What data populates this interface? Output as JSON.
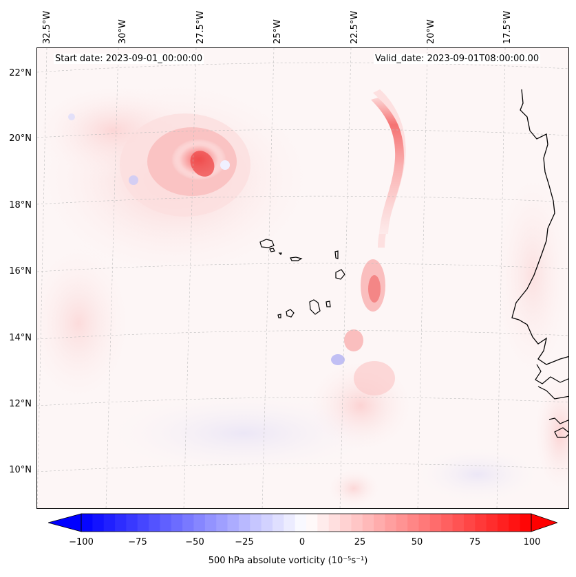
{
  "map": {
    "start_date_label": "Start date: 2023-09-01_00:00:00",
    "valid_date_label": "Valid_date: 2023-09-01T08:00:00.00",
    "lon_labels": [
      "32.5°W",
      "30°W",
      "27.5°W",
      "25°W",
      "22.5°W",
      "20°W",
      "17.5°W"
    ],
    "lat_labels": [
      "22°N",
      "20°N",
      "18°N",
      "16°N",
      "14°N",
      "12°N",
      "10°N"
    ],
    "gridlines": true,
    "field": "500 hPa absolute vorticity",
    "features": [
      "vorticity maximum near 19.5°N 27.5°W",
      "elongated vorticity band near 21°W",
      "Cape Verde islands",
      "West African coastline"
    ]
  },
  "colorbar": {
    "ticks": [
      "−100",
      "−75",
      "−50",
      "−25",
      "0",
      "25",
      "50",
      "75",
      "100"
    ],
    "range": [
      -100,
      100
    ],
    "step": 5,
    "label": "500 hPa absolute vorticity (10⁻⁵s⁻¹)",
    "low_color": "#0000ff",
    "mid_color": "#ffffff",
    "high_color": "#ff0000"
  }
}
